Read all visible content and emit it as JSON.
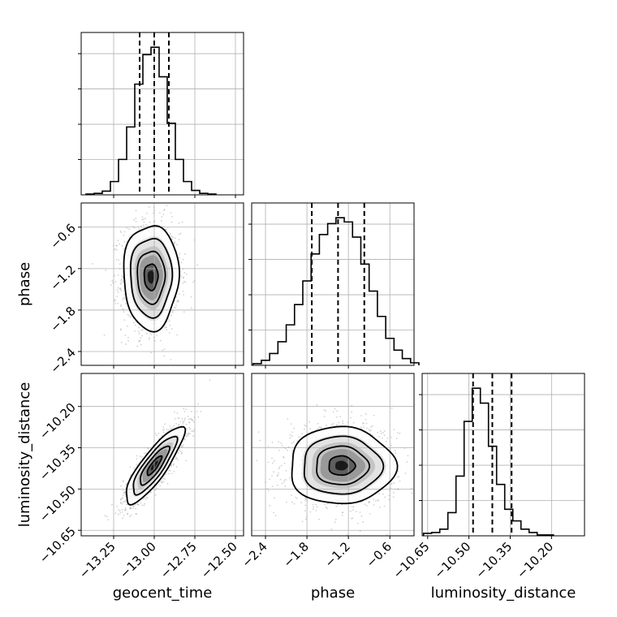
{
  "chart_data": {
    "type": "corner",
    "parameters": [
      "geocent_time",
      "phase",
      "luminosity_distance"
    ],
    "ranges": {
      "geocent_time": [
        -13.45,
        -12.45
      ],
      "phase": [
        -2.6,
        -0.25
      ],
      "luminosity_distance": [
        -10.67,
        -10.08
      ]
    },
    "ticks": {
      "geocent_time": {
        "values": [
          -13.25,
          -13.0,
          -12.75,
          -12.5
        ],
        "labels": [
          "−13.25",
          "−13.00",
          "−12.75",
          "−12.50"
        ]
      },
      "phase": {
        "values": [
          -2.4,
          -1.8,
          -1.2,
          -0.6
        ],
        "labels": [
          "−2.4",
          "−1.8",
          "−1.2",
          "−0.6"
        ]
      },
      "luminosity_distance": {
        "values": [
          -10.65,
          -10.5,
          -10.35,
          -10.2
        ],
        "labels": [
          "−10.65",
          "−10.50",
          "−10.35",
          "−10.20"
        ]
      }
    },
    "histograms": [
      {
        "name": "geocent_time",
        "bin_start": -13.42,
        "bin_width": 0.05,
        "counts": [
          1,
          2,
          5,
          18,
          48,
          92,
          150,
          190,
          200,
          160,
          97,
          48,
          18,
          6,
          2,
          1
        ],
        "quantiles": [
          -13.09,
          -13.0,
          -12.91
        ]
      },
      {
        "name": "phase",
        "bin_start": -2.58,
        "bin_width": 0.12,
        "counts": [
          2,
          6,
          14,
          28,
          48,
          72,
          100,
          132,
          155,
          168,
          175,
          170,
          152,
          120,
          88,
          58,
          32,
          18,
          8,
          3
        ],
        "quantiles": [
          -1.73,
          -1.35,
          -0.97
        ]
      },
      {
        "name": "luminosity_distance",
        "bin_start": -10.665,
        "bin_width": 0.0295,
        "counts": [
          3,
          4,
          8,
          28,
          72,
          138,
          178,
          160,
          108,
          62,
          32,
          18,
          8,
          4,
          1,
          1
        ],
        "quantiles": [
          -10.485,
          -10.415,
          -10.345
        ]
      }
    ],
    "joint": [
      {
        "x": "geocent_time",
        "y": "phase",
        "center": [
          -13.02,
          -1.32
        ],
        "sigma": [
          0.085,
          0.38
        ],
        "rho": 0.0
      },
      {
        "x": "geocent_time",
        "y": "luminosity_distance",
        "center": [
          -13.0,
          -10.415
        ],
        "sigma": [
          0.09,
          0.07
        ],
        "rho": 0.85
      },
      {
        "x": "phase",
        "y": "luminosity_distance",
        "center": [
          -1.3,
          -10.415
        ],
        "sigma": [
          0.38,
          0.07
        ],
        "rho": 0.0
      }
    ],
    "grid": true,
    "quantile_style": "dashed"
  }
}
